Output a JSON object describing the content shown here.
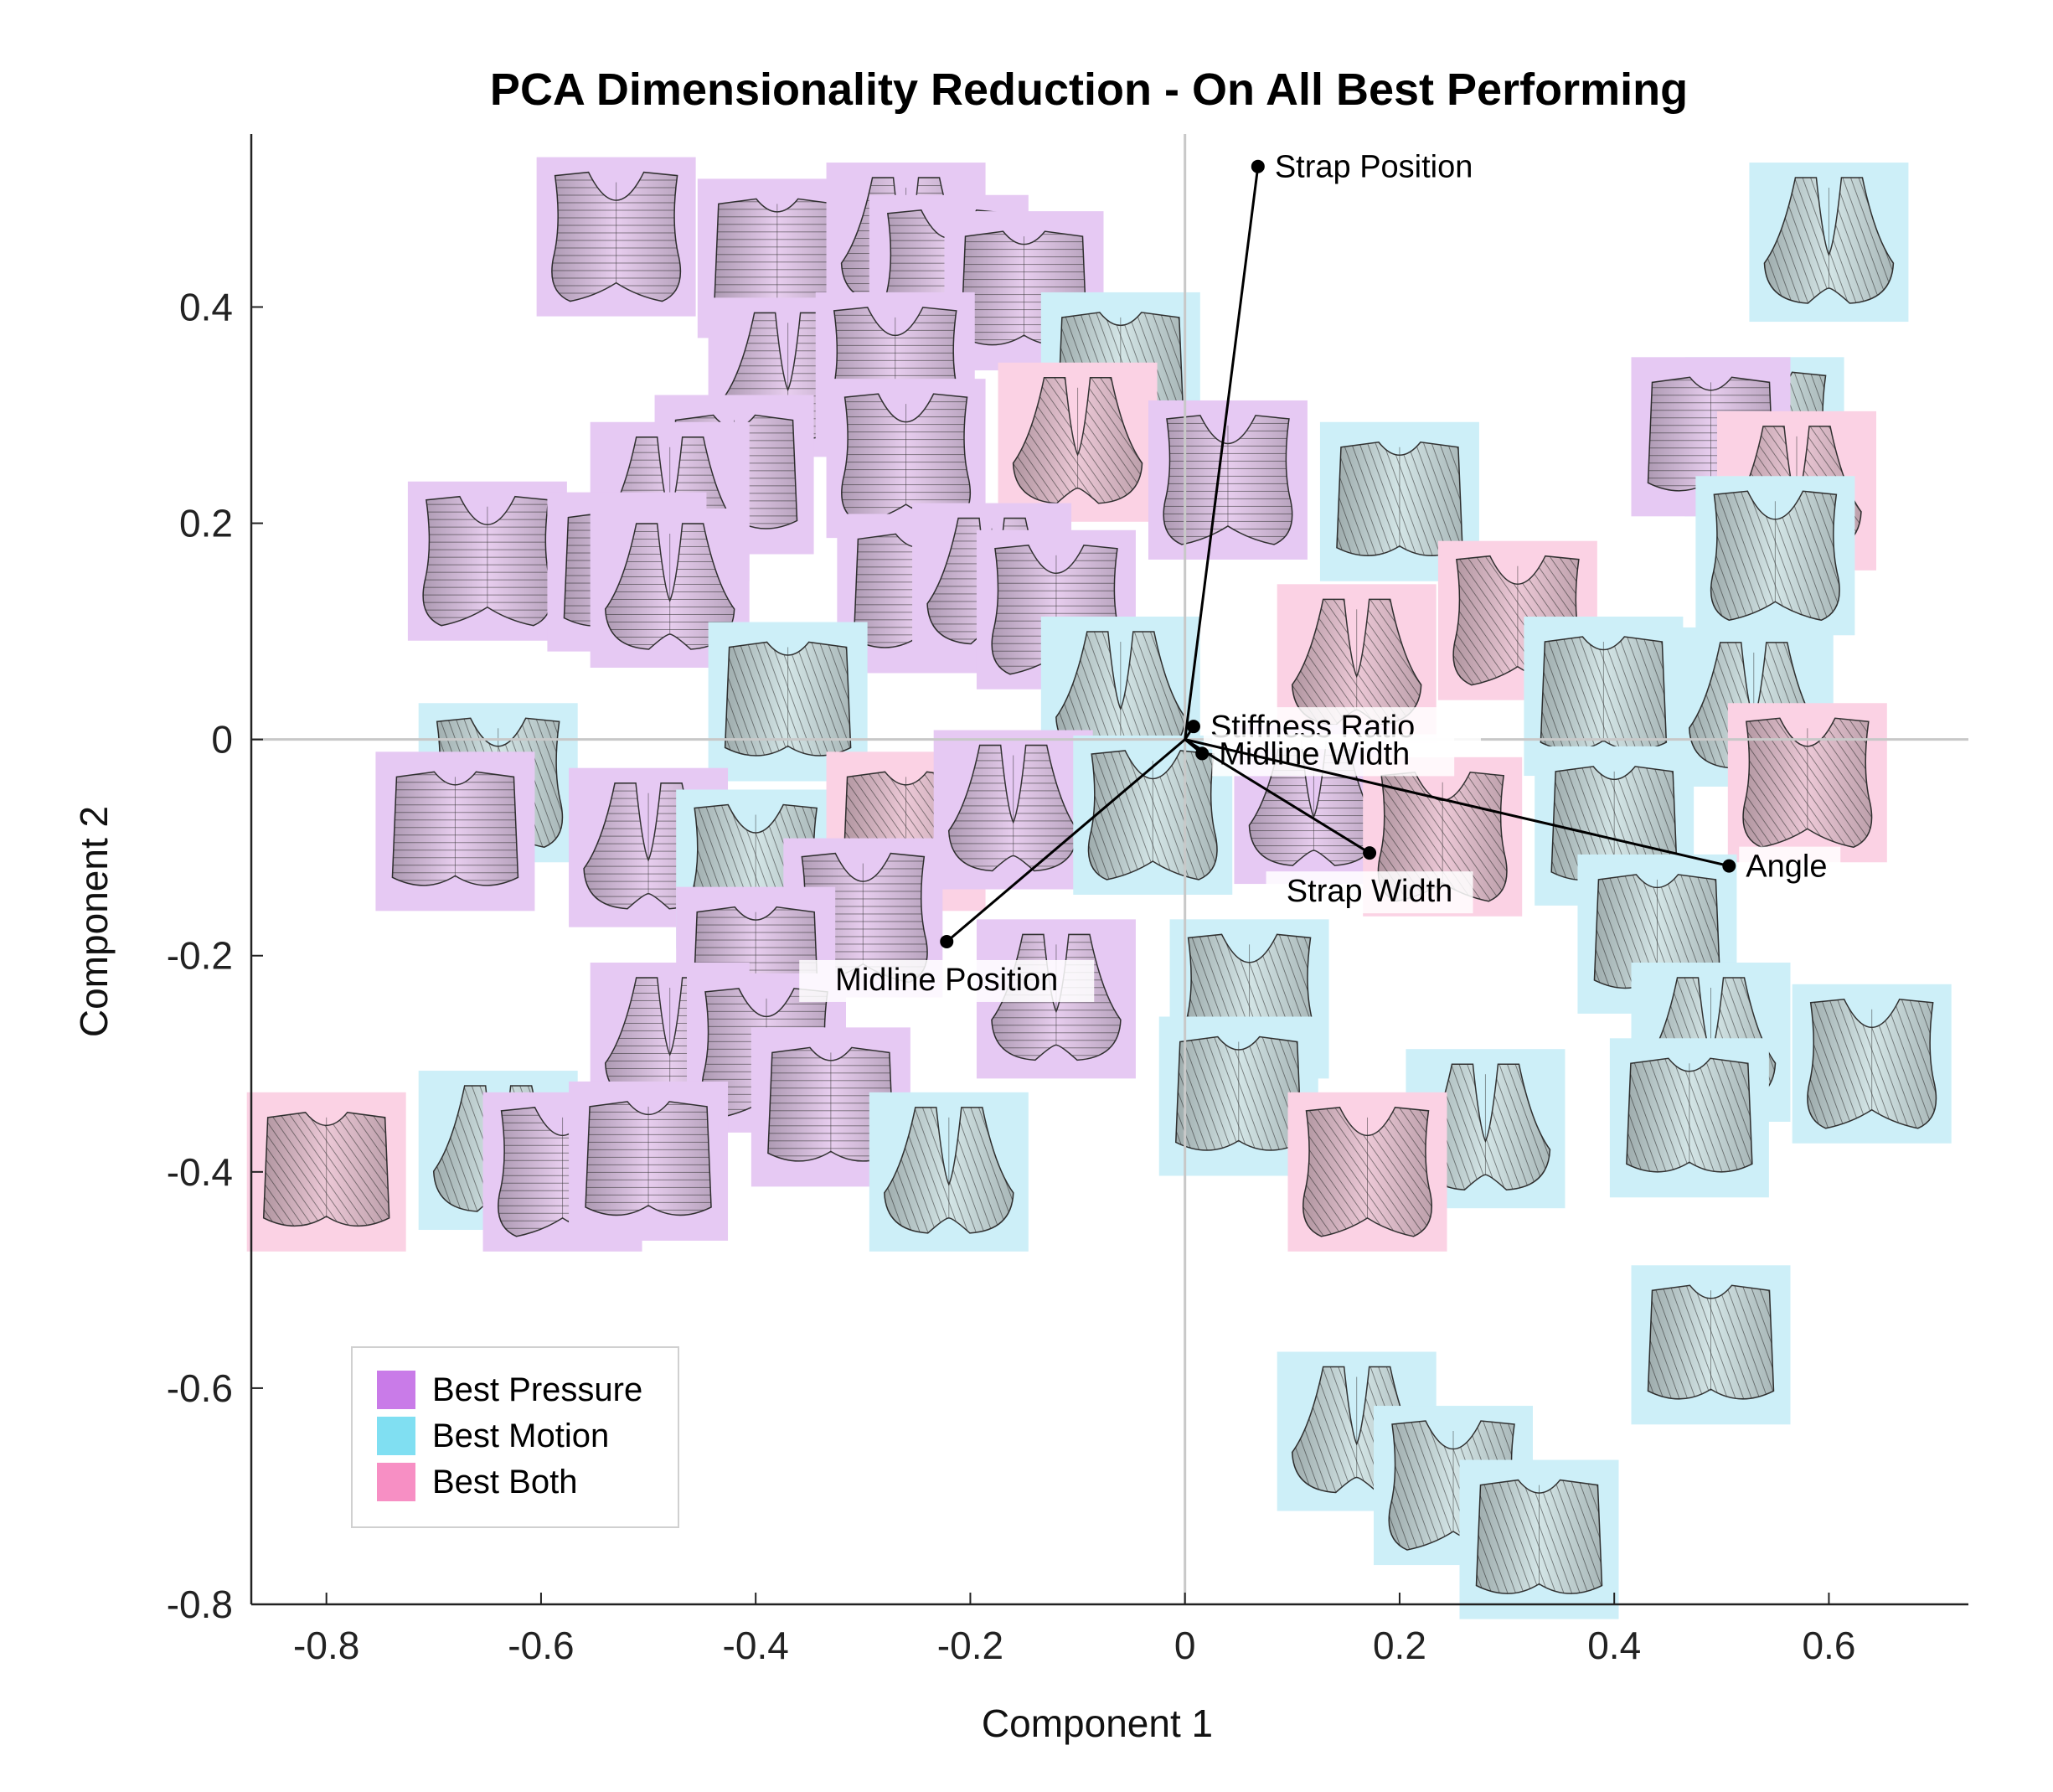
{
  "chart_data": {
    "type": "scatter",
    "title": "PCA Dimensionality Reduction - On All Best Performing",
    "xlabel": "Component 1",
    "ylabel": "Component 2",
    "xlim": [
      -0.87,
      0.73
    ],
    "ylim": [
      -0.8,
      0.56
    ],
    "xticks": [
      -0.8,
      -0.6,
      -0.4,
      -0.2,
      0,
      0.2,
      0.4,
      0.6
    ],
    "xtick_labels": [
      "-0.8",
      "-0.6",
      "-0.4",
      "-0.2",
      "0",
      "0.2",
      "0.4",
      "0.6"
    ],
    "yticks": [
      0.4,
      0.2,
      0,
      -0.2,
      -0.4,
      -0.6,
      -0.8
    ],
    "ytick_labels": [
      "0.4",
      "0.2",
      "0",
      "-0.2",
      "-0.4",
      "-0.6",
      "-0.8"
    ],
    "grid": false,
    "zero_lines": true,
    "legend_position": "bottom-left",
    "categories": [
      {
        "name": "Best Pressure",
        "color": "#c97be8",
        "tile_color": "#e6c9f3"
      },
      {
        "name": "Best Motion",
        "color": "#80dff2",
        "tile_color": "#cdeff8"
      },
      {
        "name": "Best Both",
        "color": "#f78fc4",
        "tile_color": "#fbd2e4"
      }
    ],
    "points": [
      {
        "x": -0.53,
        "y": 0.465,
        "category": "Best Pressure"
      },
      {
        "x": -0.38,
        "y": 0.445,
        "category": "Best Pressure"
      },
      {
        "x": -0.26,
        "y": 0.46,
        "category": "Best Pressure"
      },
      {
        "x": -0.22,
        "y": 0.43,
        "category": "Best Pressure"
      },
      {
        "x": -0.15,
        "y": 0.415,
        "category": "Best Pressure"
      },
      {
        "x": -0.37,
        "y": 0.335,
        "category": "Best Pressure"
      },
      {
        "x": -0.27,
        "y": 0.34,
        "category": "Best Pressure"
      },
      {
        "x": -0.06,
        "y": 0.34,
        "category": "Best Motion"
      },
      {
        "x": -0.1,
        "y": 0.275,
        "category": "Best Both"
      },
      {
        "x": -0.26,
        "y": 0.26,
        "category": "Best Pressure"
      },
      {
        "x": -0.42,
        "y": 0.245,
        "category": "Best Pressure"
      },
      {
        "x": -0.48,
        "y": 0.22,
        "category": "Best Pressure"
      },
      {
        "x": -0.65,
        "y": 0.165,
        "category": "Best Pressure"
      },
      {
        "x": -0.52,
        "y": 0.155,
        "category": "Best Pressure"
      },
      {
        "x": -0.48,
        "y": 0.14,
        "category": "Best Pressure"
      },
      {
        "x": 0.04,
        "y": 0.24,
        "category": "Best Pressure"
      },
      {
        "x": -0.25,
        "y": 0.135,
        "category": "Best Pressure"
      },
      {
        "x": -0.18,
        "y": 0.145,
        "category": "Best Pressure"
      },
      {
        "x": -0.12,
        "y": 0.12,
        "category": "Best Pressure"
      },
      {
        "x": -0.37,
        "y": 0.035,
        "category": "Best Motion"
      },
      {
        "x": -0.06,
        "y": 0.04,
        "category": "Best Motion"
      },
      {
        "x": -0.64,
        "y": -0.04,
        "category": "Best Motion"
      },
      {
        "x": -0.68,
        "y": -0.085,
        "category": "Best Pressure"
      },
      {
        "x": -0.5,
        "y": -0.1,
        "category": "Best Pressure"
      },
      {
        "x": -0.4,
        "y": -0.12,
        "category": "Best Motion"
      },
      {
        "x": -0.26,
        "y": -0.085,
        "category": "Best Both"
      },
      {
        "x": -0.16,
        "y": -0.065,
        "category": "Best Pressure"
      },
      {
        "x": -0.3,
        "y": -0.165,
        "category": "Best Pressure"
      },
      {
        "x": -0.4,
        "y": -0.21,
        "category": "Best Pressure"
      },
      {
        "x": -0.48,
        "y": -0.28,
        "category": "Best Pressure"
      },
      {
        "x": -0.39,
        "y": -0.29,
        "category": "Best Pressure"
      },
      {
        "x": -0.33,
        "y": -0.34,
        "category": "Best Pressure"
      },
      {
        "x": -0.12,
        "y": -0.24,
        "category": "Best Pressure"
      },
      {
        "x": -0.03,
        "y": -0.07,
        "category": "Best Motion"
      },
      {
        "x": -0.8,
        "y": -0.4,
        "category": "Best Both"
      },
      {
        "x": -0.64,
        "y": -0.38,
        "category": "Best Motion"
      },
      {
        "x": -0.58,
        "y": -0.4,
        "category": "Best Pressure"
      },
      {
        "x": -0.5,
        "y": -0.39,
        "category": "Best Pressure"
      },
      {
        "x": -0.22,
        "y": -0.4,
        "category": "Best Motion"
      },
      {
        "x": 0.06,
        "y": -0.24,
        "category": "Best Motion"
      },
      {
        "x": 0.05,
        "y": -0.33,
        "category": "Best Motion"
      },
      {
        "x": 0.28,
        "y": -0.36,
        "category": "Best Motion"
      },
      {
        "x": 0.17,
        "y": -0.4,
        "category": "Best Both"
      },
      {
        "x": 0.2,
        "y": 0.22,
        "category": "Best Motion"
      },
      {
        "x": 0.16,
        "y": 0.07,
        "category": "Best Both"
      },
      {
        "x": 0.31,
        "y": 0.11,
        "category": "Best Both"
      },
      {
        "x": 0.39,
        "y": 0.04,
        "category": "Best Motion"
      },
      {
        "x": 0.12,
        "y": -0.06,
        "category": "Best Pressure"
      },
      {
        "x": 0.24,
        "y": -0.09,
        "category": "Best Both"
      },
      {
        "x": 0.4,
        "y": -0.08,
        "category": "Best Motion"
      },
      {
        "x": 0.53,
        "y": 0.03,
        "category": "Best Motion"
      },
      {
        "x": 0.58,
        "y": -0.04,
        "category": "Best Both"
      },
      {
        "x": 0.44,
        "y": -0.18,
        "category": "Best Motion"
      },
      {
        "x": 0.49,
        "y": -0.28,
        "category": "Best Motion"
      },
      {
        "x": 0.64,
        "y": -0.3,
        "category": "Best Motion"
      },
      {
        "x": 0.47,
        "y": -0.35,
        "category": "Best Motion"
      },
      {
        "x": 0.6,
        "y": 0.46,
        "category": "Best Motion"
      },
      {
        "x": 0.54,
        "y": 0.28,
        "category": "Best Motion"
      },
      {
        "x": 0.49,
        "y": 0.28,
        "category": "Best Pressure"
      },
      {
        "x": 0.57,
        "y": 0.23,
        "category": "Best Both"
      },
      {
        "x": 0.55,
        "y": 0.17,
        "category": "Best Motion"
      },
      {
        "x": 0.49,
        "y": -0.56,
        "category": "Best Motion"
      },
      {
        "x": 0.16,
        "y": -0.64,
        "category": "Best Motion"
      },
      {
        "x": 0.25,
        "y": -0.69,
        "category": "Best Motion"
      },
      {
        "x": 0.33,
        "y": -0.74,
        "category": "Best Motion"
      }
    ],
    "loadings": [
      {
        "name": "Strap Position",
        "x": 0.068,
        "y": 0.53,
        "label_side": "right"
      },
      {
        "name": "Stiffness Ratio",
        "x": 0.008,
        "y": 0.012,
        "label_side": "right"
      },
      {
        "name": "Midline Width",
        "x": 0.016,
        "y": -0.013,
        "label_side": "right"
      },
      {
        "name": "Strap Width",
        "x": 0.172,
        "y": -0.105,
        "label_side": "below"
      },
      {
        "name": "Angle",
        "x": 0.507,
        "y": -0.117,
        "label_side": "right"
      },
      {
        "name": "Midline Position",
        "x": -0.222,
        "y": -0.187,
        "label_side": "below"
      }
    ]
  }
}
